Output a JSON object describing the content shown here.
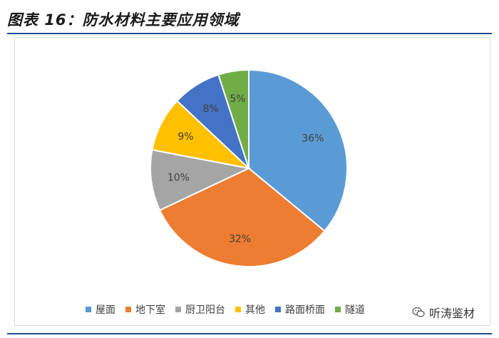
{
  "figure": {
    "title": "图表 16：防水材料主要应用领域"
  },
  "watermark": {
    "text": "听涛鉴材",
    "icon": "wechat-icon"
  },
  "colors": {
    "rule": "#1f4e8c",
    "series": [
      "#5b9bd5",
      "#ed7d31",
      "#a5a5a5",
      "#ffc000",
      "#4472c4",
      "#70ad47"
    ]
  },
  "chart_data": {
    "type": "pie",
    "title": "",
    "categories": [
      "屋面",
      "地下室",
      "厨卫阳台",
      "其他",
      "路面桥面",
      "隧道"
    ],
    "values": [
      36,
      32,
      10,
      9,
      8,
      5
    ],
    "labels": [
      "36%",
      "32%",
      "10%",
      "9%",
      "8%",
      "5%"
    ],
    "legend": {
      "position": "bottom"
    },
    "start_angle": "12 o'clock, clockwise"
  }
}
